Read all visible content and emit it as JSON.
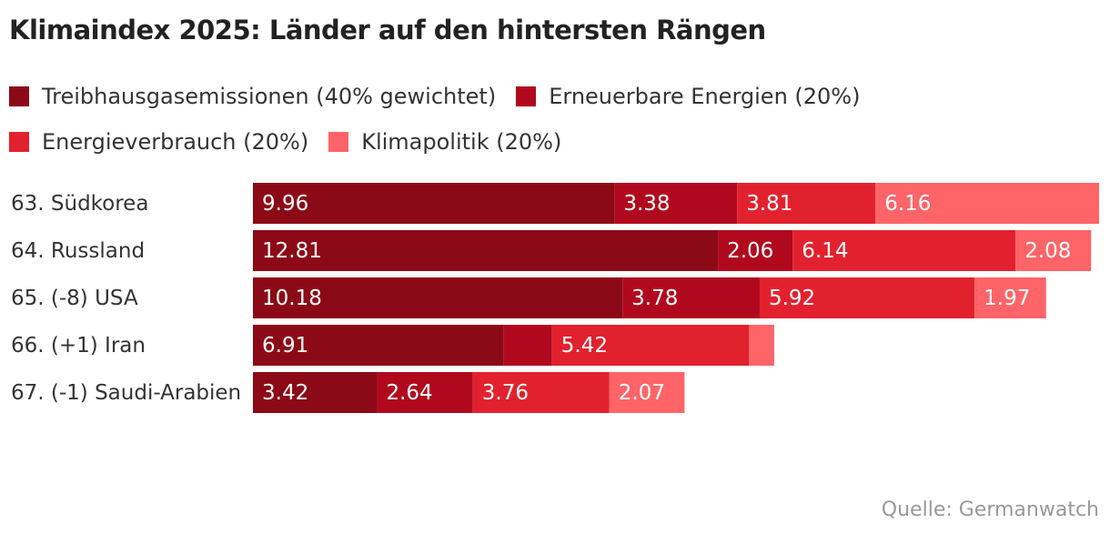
{
  "chart_data": {
    "type": "stacked-bar",
    "orientation": "horizontal",
    "title": "Klimaindex 2025: Länder auf den hintersten Rängen",
    "source": "Quelle: Germanwatch",
    "categories": [
      "63. Südkorea",
      "64. Russland",
      "65. (-8) USA",
      "66. (+1) Iran",
      "67. (-1) Saudi-Arabien"
    ],
    "series": [
      {
        "name": "Treibhausgasemissionen (40% gewichtet)",
        "color": "#8c0a17",
        "values": [
          9.96,
          12.81,
          10.18,
          6.91,
          3.42
        ]
      },
      {
        "name": "Erneuerbare Energien (20%)",
        "color": "#b0091e",
        "values": [
          3.38,
          2.06,
          3.78,
          1.33,
          2.64
        ],
        "value_labels": [
          "3.38",
          "2.06",
          "3.78",
          null,
          "2.64"
        ]
      },
      {
        "name": "Energieverbrauch (20%)",
        "color": "#e2212e",
        "values": [
          3.81,
          6.14,
          5.92,
          5.42,
          3.76
        ]
      },
      {
        "name": "Klimapolitik (20%)",
        "color": "#ff6468",
        "values": [
          6.16,
          2.08,
          1.97,
          0.7,
          2.07
        ],
        "value_labels": [
          "6.16",
          "2.08",
          "1.97",
          null,
          "2.07"
        ]
      }
    ]
  }
}
